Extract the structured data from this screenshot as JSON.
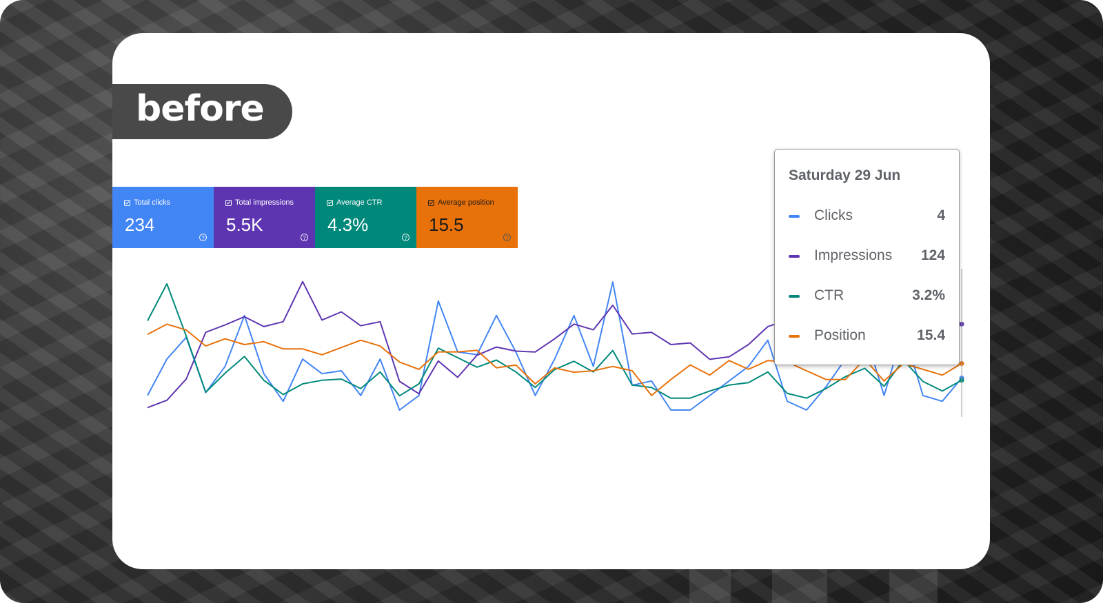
{
  "badge": {
    "text": "before"
  },
  "metrics": [
    {
      "label": "Total clicks",
      "value": "234",
      "color": "#4285f4"
    },
    {
      "label": "Total impressions",
      "value": "5.5K",
      "color": "#5e35b1"
    },
    {
      "label": "Average CTR",
      "value": "4.3%",
      "color": "#00897b"
    },
    {
      "label": "Average position",
      "value": "15.5",
      "color": "#e8710a"
    }
  ],
  "tooltip": {
    "date": "Saturday 29 Jun",
    "rows": [
      {
        "label": "Clicks",
        "value": "4",
        "color": "#4285f4"
      },
      {
        "label": "Impressions",
        "value": "124",
        "color": "#5e35b1"
      },
      {
        "label": "CTR",
        "value": "3.2%",
        "color": "#00897b"
      },
      {
        "label": "Position",
        "value": "15.4",
        "color": "#e8710a"
      }
    ]
  },
  "chart_data": {
    "type": "line",
    "title": "",
    "xlabel": "",
    "ylabel": "",
    "grid": false,
    "x": [
      1,
      2,
      3,
      4,
      5,
      6,
      7,
      8,
      9,
      10,
      11,
      12,
      13,
      14,
      15,
      16,
      17,
      18,
      19,
      20,
      21,
      22,
      23,
      24,
      25,
      26,
      27,
      28,
      29,
      30,
      31,
      32,
      33,
      34,
      35,
      36,
      37,
      38,
      39,
      40,
      41,
      42,
      43
    ],
    "series": [
      {
        "name": "Clicks",
        "color": "#4285f4",
        "values": [
          1,
          3.5,
          5,
          1.2,
          3,
          6.5,
          2.5,
          0.6,
          3.5,
          2.5,
          2.7,
          1,
          3.5,
          0,
          1,
          7.5,
          4,
          3.8,
          6.5,
          4,
          1,
          3.5,
          6.5,
          3,
          8.8,
          1.7,
          2,
          0,
          0,
          1,
          2,
          3,
          4.8,
          0.6,
          0,
          1.6,
          3.5,
          5.3,
          1,
          5.5,
          1,
          0.6,
          2.2
        ]
      },
      {
        "name": "Impressions",
        "color": "#5e35b1",
        "values": [
          3,
          12,
          38,
          95,
          104,
          114,
          102,
          108,
          157,
          110,
          120,
          103,
          108,
          35,
          20,
          60,
          40,
          67,
          77,
          72,
          71,
          87,
          105,
          98,
          128,
          93,
          95,
          80,
          82,
          62,
          65,
          80,
          102,
          110,
          115,
          124,
          126,
          118,
          110,
          120,
          124,
          95,
          105
        ]
      },
      {
        "name": "CTR",
        "color": "#00897b",
        "values": [
          7.5,
          10.6,
          6.2,
          1.5,
          3.1,
          4.5,
          2.5,
          1.3,
          2.2,
          2.5,
          2.6,
          1.8,
          3.2,
          1.2,
          2.2,
          5.2,
          4.4,
          3.6,
          4.2,
          3.2,
          1.9,
          3.4,
          4.1,
          3.2,
          5.0,
          2.1,
          1.9,
          1.0,
          1.0,
          1.6,
          2.1,
          2.3,
          3.2,
          1.4,
          1.0,
          1.8,
          2.8,
          3.5,
          2.0,
          4.2,
          2.4,
          1.6,
          2.5
        ]
      },
      {
        "name": "Position",
        "color": "#e8710a",
        "values": [
          10.8,
          10.1,
          10.5,
          11.6,
          11.1,
          11.5,
          11.3,
          11.8,
          11.8,
          12.2,
          11.7,
          11.2,
          11.6,
          12.7,
          13.2,
          12.0,
          12.0,
          11.9,
          13.1,
          12.9,
          14.2,
          13.1,
          13.4,
          13.3,
          13.0,
          13.3,
          15.0,
          13.9,
          12.9,
          13.6,
          12.6,
          13.2,
          12.6,
          12.7,
          13.3,
          13.9,
          13.9,
          12.5,
          14.0,
          12.8,
          13.2,
          13.6,
          12.8
        ]
      }
    ]
  }
}
